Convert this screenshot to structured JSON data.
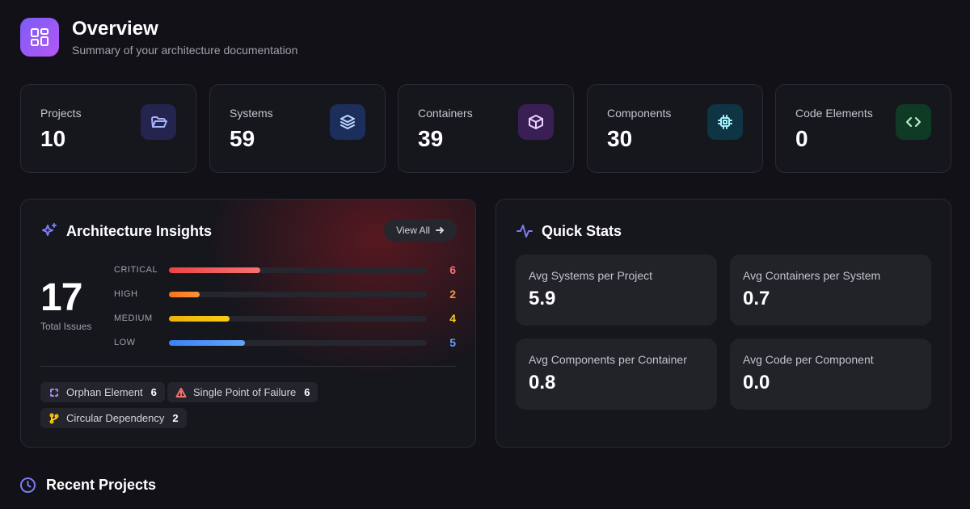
{
  "header": {
    "title": "Overview",
    "subtitle": "Summary of your architecture documentation"
  },
  "stat_cards": [
    {
      "label": "Projects",
      "value": 10
    },
    {
      "label": "Systems",
      "value": 59
    },
    {
      "label": "Containers",
      "value": 39
    },
    {
      "label": "Components",
      "value": 30
    },
    {
      "label": "Code Elements",
      "value": 0
    }
  ],
  "insights": {
    "title": "Architecture Insights",
    "action": "View All",
    "total": 17,
    "total_label": "Total Issues",
    "severities": [
      {
        "label": "CRITICAL",
        "count": 6
      },
      {
        "label": "HIGH",
        "count": 2
      },
      {
        "label": "MEDIUM",
        "count": 4
      },
      {
        "label": "LOW",
        "count": 5
      }
    ],
    "issue_types": [
      {
        "label": "Orphan Element",
        "count": 6
      },
      {
        "label": "Single Point of Failure",
        "count": 6
      },
      {
        "label": "Circular Dependency",
        "count": 2
      }
    ]
  },
  "quick_stats": {
    "title": "Quick Stats",
    "items": [
      {
        "label": "Avg Systems per Project",
        "value": "5.9"
      },
      {
        "label": "Avg Containers per System",
        "value": "0.7"
      },
      {
        "label": "Avg Components per Container",
        "value": "0.8"
      },
      {
        "label": "Avg Code per Component",
        "value": "0.0"
      }
    ]
  },
  "recent_projects": {
    "title": "Recent Projects"
  }
}
